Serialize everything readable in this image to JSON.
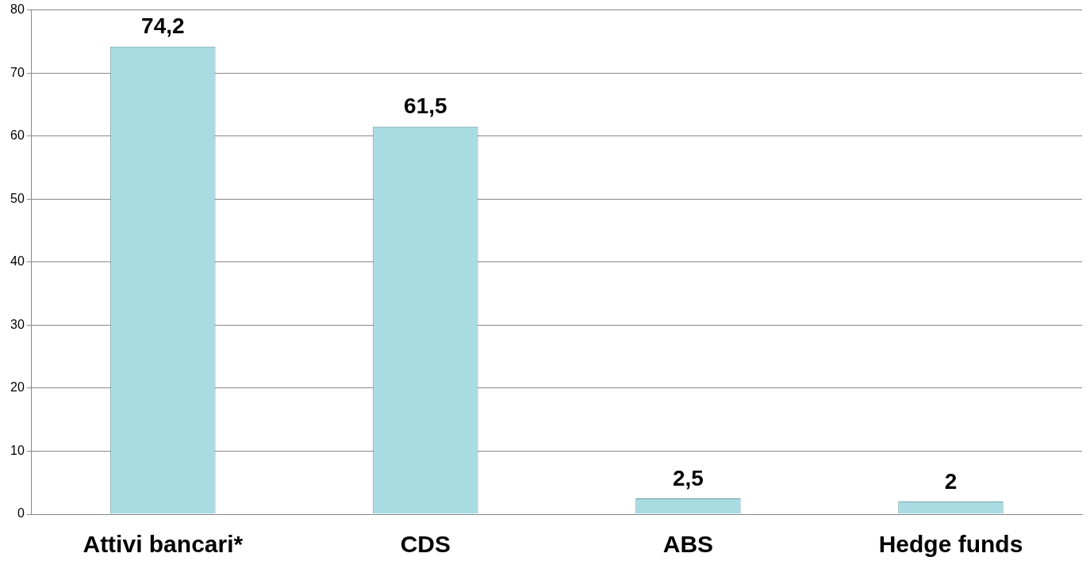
{
  "chart_data": {
    "type": "bar",
    "categories": [
      "Attivi bancari*",
      "CDS",
      "ABS",
      "Hedge funds"
    ],
    "values": [
      74.2,
      61.5,
      2.5,
      2
    ],
    "value_labels": [
      "74,2",
      "61,5",
      "2,5",
      "2"
    ],
    "color": "#a9dce2",
    "ylim": [
      0,
      80
    ],
    "yticks": [
      0,
      10,
      20,
      30,
      40,
      50,
      60,
      70,
      80
    ],
    "grid": "y",
    "legend": false
  }
}
